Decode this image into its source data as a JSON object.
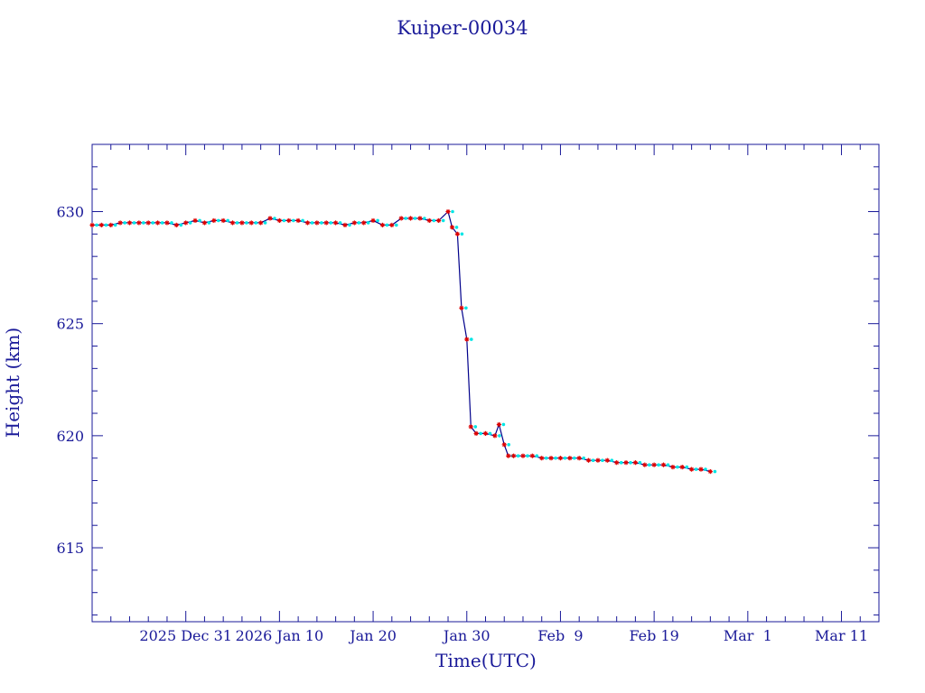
{
  "chart_data": {
    "type": "line",
    "title": "Kuiper-00034",
    "xlabel": "Time(UTC)",
    "ylabel": "Height (km)",
    "x_tick_labels": [
      "2025 Dec 31",
      "2026 Jan 10",
      "Jan 20",
      "Jan 30",
      "Feb  9",
      "Feb 19",
      "Mar  1",
      "Mar 11"
    ],
    "x_tick_dates": [
      "2025-12-31",
      "2026-01-10",
      "2026-01-20",
      "2026-01-30",
      "2026-02-09",
      "2026-02-19",
      "2026-03-01",
      "2026-03-11"
    ],
    "x_range": [
      "2025-12-21",
      "2026-03-15"
    ],
    "y_tick_labels": [
      "615",
      "620",
      "625",
      "630"
    ],
    "y_ticks": [
      615,
      620,
      625,
      630
    ],
    "ylim": [
      611.7,
      633
    ],
    "grid": false,
    "colors": {
      "axis": "#1a1a99",
      "line": "#00008b",
      "marker_primary": "#dd0000",
      "marker_secondary": "#00e5e5"
    },
    "series": [
      {
        "x": [
          "2025-12-21",
          "2025-12-22",
          "2025-12-23",
          "2025-12-24",
          "2025-12-25",
          "2025-12-26",
          "2025-12-27",
          "2025-12-28",
          "2025-12-29",
          "2025-12-30",
          "2025-12-31",
          "2026-01-01",
          "2026-01-02",
          "2026-01-03",
          "2026-01-04",
          "2026-01-05",
          "2026-01-06",
          "2026-01-07",
          "2026-01-08",
          "2026-01-09",
          "2026-01-10",
          "2026-01-11",
          "2026-01-12",
          "2026-01-13",
          "2026-01-14",
          "2026-01-15",
          "2026-01-16",
          "2026-01-17",
          "2026-01-18",
          "2026-01-19",
          "2026-01-20",
          "2026-01-21",
          "2026-01-22",
          "2026-01-23",
          "2026-01-24",
          "2026-01-25",
          "2026-01-26",
          "2026-01-27",
          "2026-01-28",
          "2026-01-28",
          "2026-01-29",
          "2026-01-29",
          "2026-01-30",
          "2026-01-30",
          "2026-01-31",
          "2026-02-01",
          "2026-02-02",
          "2026-02-02",
          "2026-02-03",
          "2026-02-03",
          "2026-02-04",
          "2026-02-05",
          "2026-02-06",
          "2026-02-07",
          "2026-02-08",
          "2026-02-09",
          "2026-02-10",
          "2026-02-11",
          "2026-02-12",
          "2026-02-13",
          "2026-02-14",
          "2026-02-15",
          "2026-02-16",
          "2026-02-17",
          "2026-02-18",
          "2026-02-19",
          "2026-02-20",
          "2026-02-21",
          "2026-02-22",
          "2026-02-23",
          "2026-02-24",
          "2026-02-25"
        ],
        "y": [
          629.4,
          629.4,
          629.4,
          629.5,
          629.5,
          629.5,
          629.5,
          629.5,
          629.5,
          629.4,
          629.5,
          629.6,
          629.5,
          629.6,
          629.6,
          629.5,
          629.5,
          629.5,
          629.5,
          629.7,
          629.6,
          629.6,
          629.6,
          629.5,
          629.5,
          629.5,
          629.5,
          629.4,
          629.5,
          629.5,
          629.6,
          629.4,
          629.4,
          629.7,
          629.7,
          629.7,
          629.6,
          629.6,
          630.0,
          629.3,
          629.0,
          625.7,
          624.3,
          620.4,
          620.1,
          620.1,
          620.0,
          620.5,
          619.6,
          619.1,
          619.1,
          619.1,
          619.1,
          619.0,
          619.0,
          619.0,
          619.0,
          619.0,
          618.9,
          618.9,
          618.9,
          618.8,
          618.8,
          618.8,
          618.7,
          618.7,
          618.7,
          618.6,
          618.6,
          618.5,
          618.5,
          618.4
        ]
      }
    ]
  }
}
